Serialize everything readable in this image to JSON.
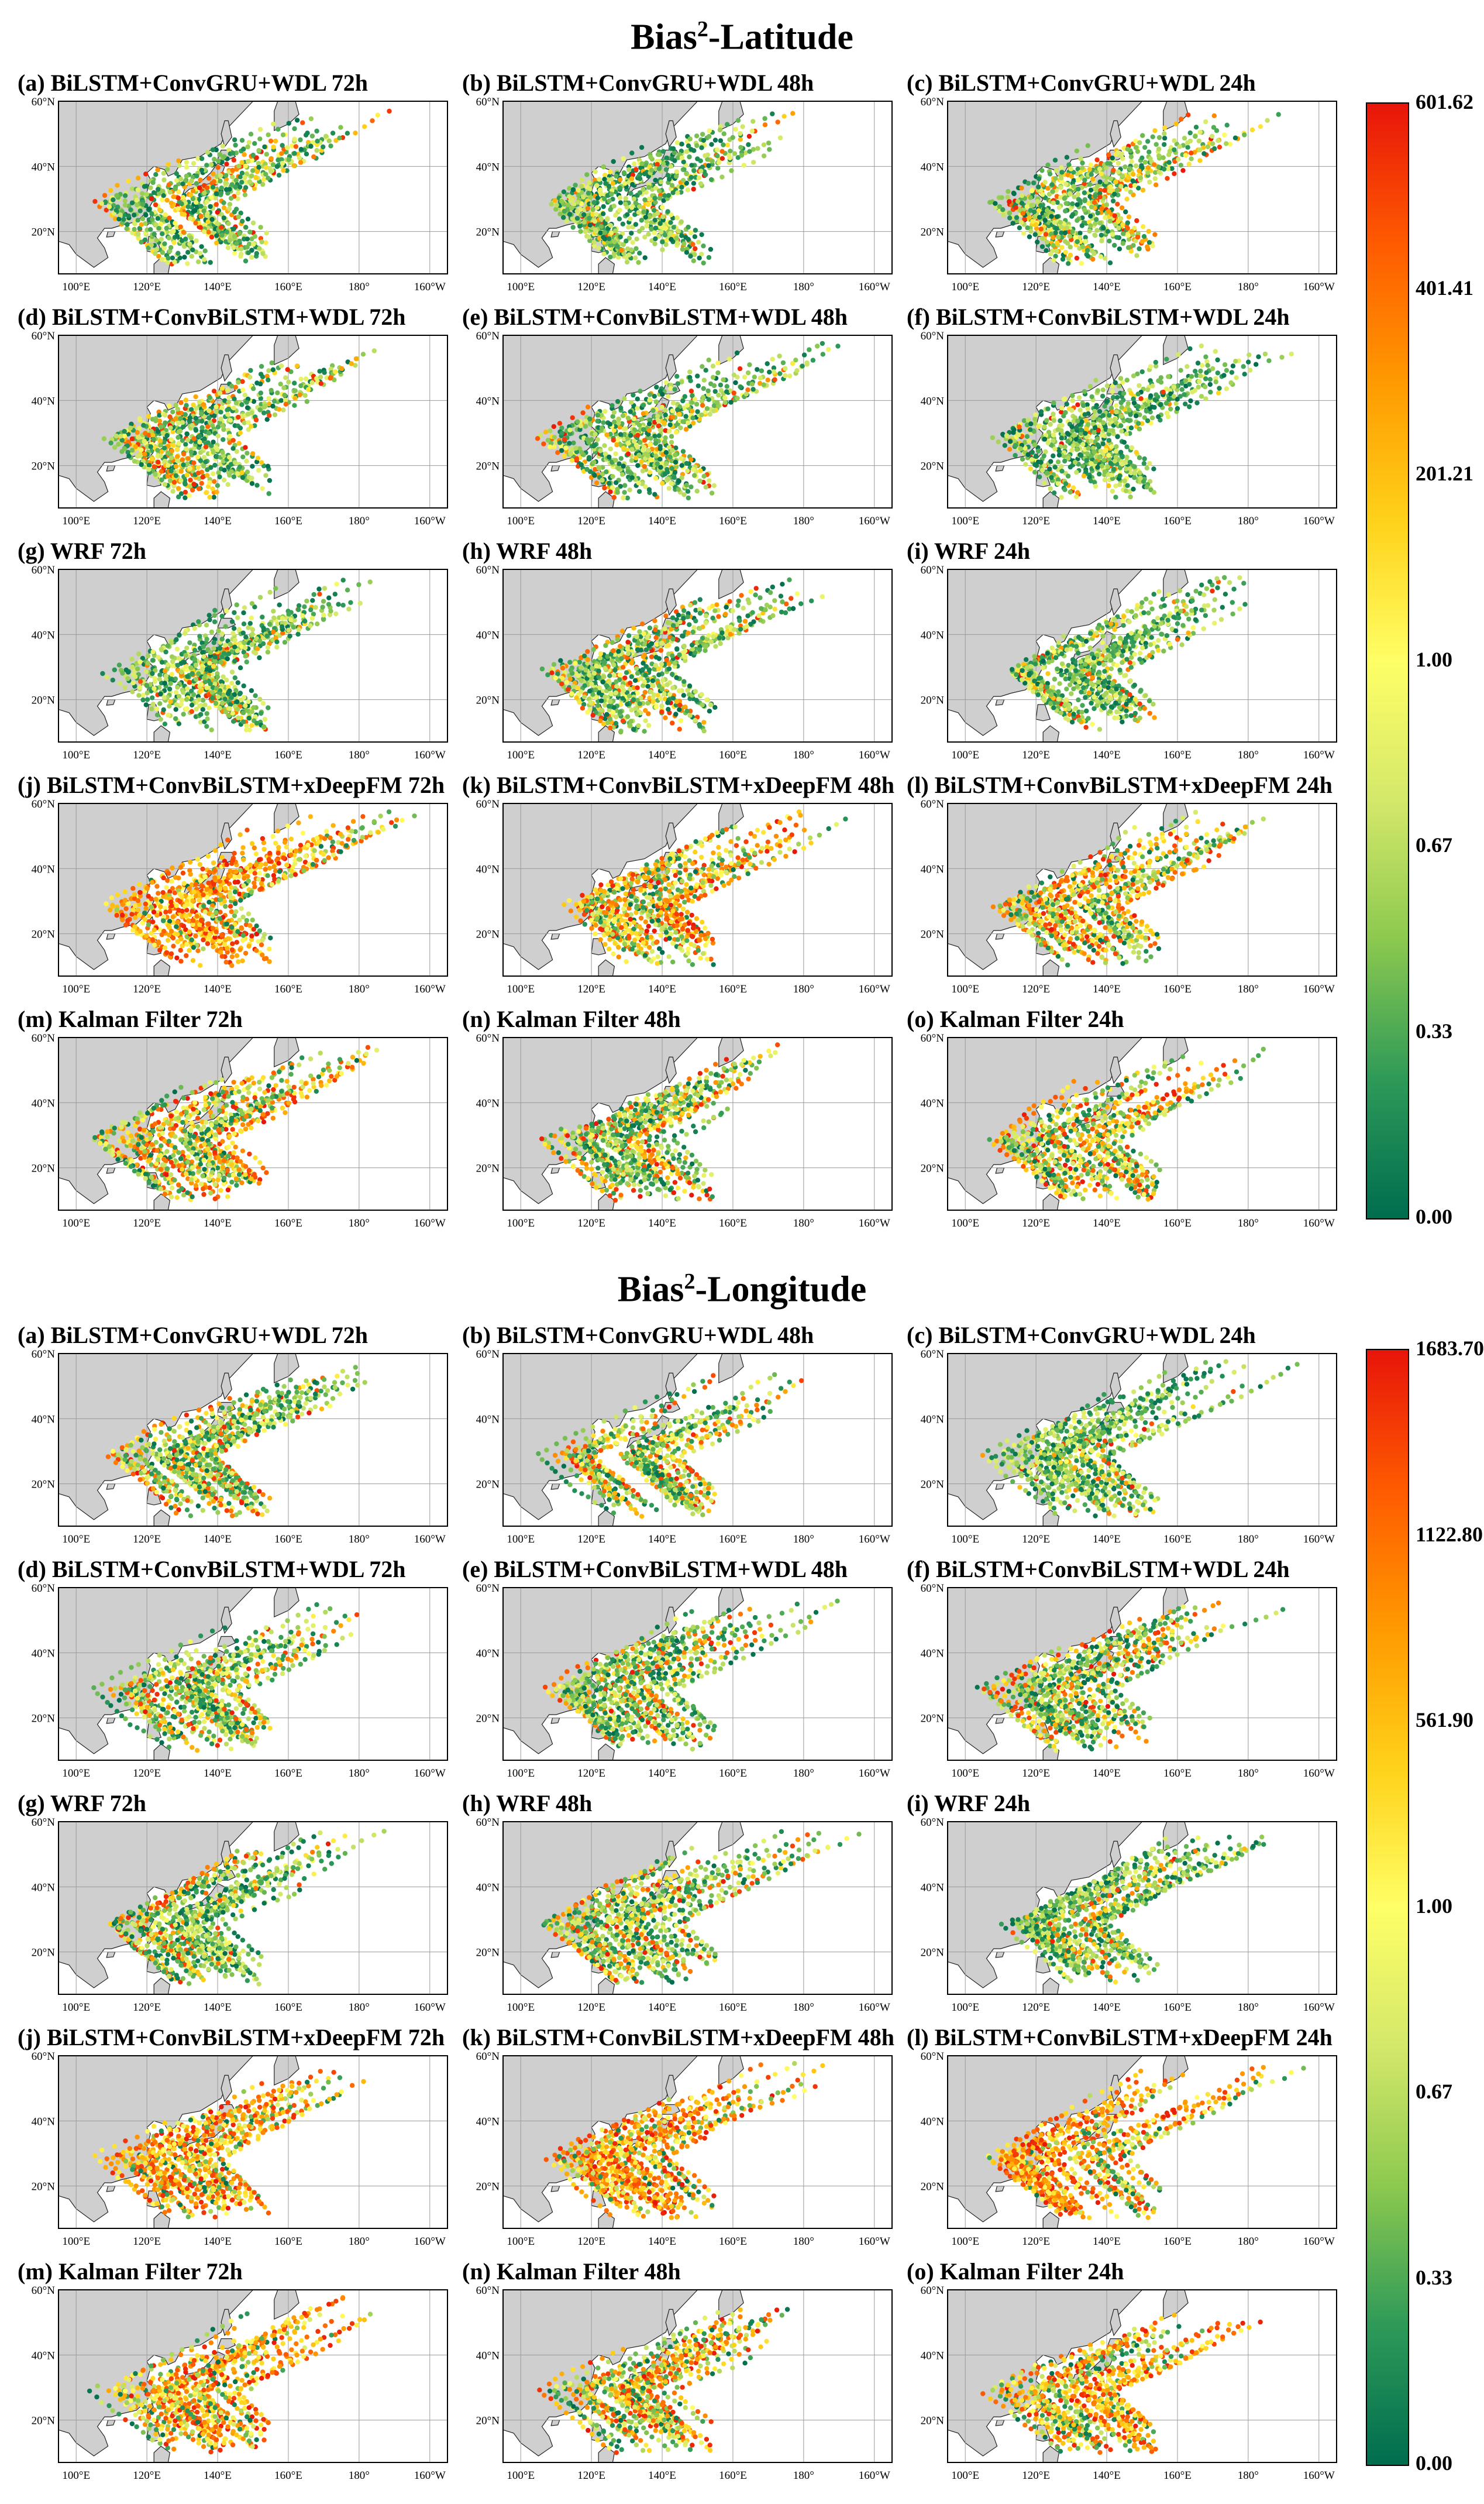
{
  "colors": {
    "land": "#cfcfcf",
    "ocean": "#ffffff",
    "grid": "#9a9a9a",
    "scale_stops": [
      "#006d4f",
      "#2e9a58",
      "#8cc94f",
      "#d4e86a",
      "#ffff66",
      "#ffd21a",
      "#ff9a00",
      "#ff5a00",
      "#e8150a"
    ]
  },
  "axes": {
    "lat_ticks": [
      "60°N",
      "40°N",
      "20°N"
    ],
    "lon_ticks": [
      "100°E",
      "120°E",
      "140°E",
      "160°E",
      "180°",
      "160°W"
    ]
  },
  "sections": [
    {
      "title_main": "Bias",
      "title_sup": "2",
      "title_rest": "-Latitude",
      "colorbar_labels": [
        "601.62",
        "401.41",
        "201.21",
        "1.00",
        "0.67",
        "0.33",
        "0.00"
      ],
      "panels": [
        {
          "title": "(a) BiLSTM+ConvGRU+WDL 72h",
          "hot": 0.18
        },
        {
          "title": "(b) BiLSTM+ConvGRU+WDL 48h",
          "hot": 0.16
        },
        {
          "title": "(c) BiLSTM+ConvGRU+WDL 24h",
          "hot": 0.17
        },
        {
          "title": "(d) BiLSTM+ConvBiLSTM+WDL 72h",
          "hot": 0.15
        },
        {
          "title": "(e) BiLSTM+ConvBiLSTM+WDL 48h",
          "hot": 0.12
        },
        {
          "title": "(f) BiLSTM+ConvBiLSTM+WDL 24h",
          "hot": 0.14
        },
        {
          "title": "(g) WRF 72h",
          "hot": 0.22
        },
        {
          "title": "(h) WRF 48h",
          "hot": 0.22
        },
        {
          "title": "(i) WRF 24h",
          "hot": 0.16
        },
        {
          "title": "(j) BiLSTM+ConvBiLSTM+xDeepFM 72h",
          "hot": 0.78
        },
        {
          "title": "(k) BiLSTM+ConvBiLSTM+xDeepFM 48h",
          "hot": 0.62
        },
        {
          "title": "(l) BiLSTM+ConvBiLSTM+xDeepFM 24h",
          "hot": 0.58
        },
        {
          "title": "(m) Kalman Filter 72h",
          "hot": 0.4
        },
        {
          "title": "(n) Kalman Filter 48h",
          "hot": 0.46
        },
        {
          "title": "(o) Kalman Filter 24h",
          "hot": 0.48
        }
      ]
    },
    {
      "title_main": "Bias",
      "title_sup": "2",
      "title_rest": "-Longitude",
      "colorbar_labels": [
        "1683.70",
        "1122.80",
        "561.90",
        "1.00",
        "0.67",
        "0.33",
        "0.00"
      ],
      "panels": [
        {
          "title": "(a) BiLSTM+ConvGRU+WDL 72h",
          "hot": 0.24
        },
        {
          "title": "(b) BiLSTM+ConvGRU+WDL 48h",
          "hot": 0.26
        },
        {
          "title": "(c) BiLSTM+ConvGRU+WDL 24h",
          "hot": 0.2
        },
        {
          "title": "(d) BiLSTM+ConvBiLSTM+WDL 72h",
          "hot": 0.22
        },
        {
          "title": "(e) BiLSTM+ConvBiLSTM+WDL 48h",
          "hot": 0.2
        },
        {
          "title": "(f) BiLSTM+ConvBiLSTM+WDL 24h",
          "hot": 0.2
        },
        {
          "title": "(g) WRF 72h",
          "hot": 0.18
        },
        {
          "title": "(h) WRF 48h",
          "hot": 0.22
        },
        {
          "title": "(i) WRF 24h",
          "hot": 0.16
        },
        {
          "title": "(j) BiLSTM+ConvBiLSTM+xDeepFM 72h",
          "hot": 0.86
        },
        {
          "title": "(k) BiLSTM+ConvBiLSTM+xDeepFM 48h",
          "hot": 0.82
        },
        {
          "title": "(l) BiLSTM+ConvBiLSTM+xDeepFM 24h",
          "hot": 0.78
        },
        {
          "title": "(m) Kalman Filter 72h",
          "hot": 0.66
        },
        {
          "title": "(n) Kalman Filter 48h",
          "hot": 0.66
        },
        {
          "title": "(o) Kalman Filter 24h",
          "hot": 0.68
        }
      ]
    }
  ]
}
